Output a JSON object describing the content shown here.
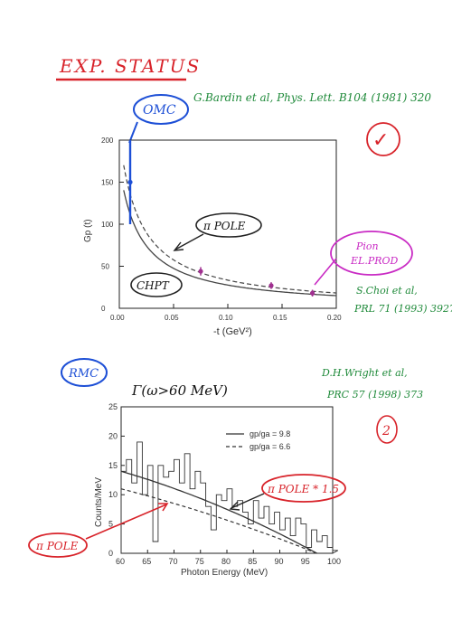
{
  "header": {
    "title": "EXP. STATUS",
    "ref1": "G.Bardin et al, Phys. Lett. B104 (1981) 320",
    "omc": "OMC",
    "check": "✓"
  },
  "top_chart_labels": {
    "ylabel": "Gp (t)",
    "xlabel": "-t (GeV²)",
    "pion_pole": "π POLE",
    "chpt": "CHPT",
    "pion_el_prod_1": "Pion",
    "pion_el_prod_2": "EL.PROD",
    "ref2_1": "S.Choi et al,",
    "ref2_2": "PRL 71 (1993) 3927"
  },
  "bottom_chart_labels": {
    "rmc": "RMC",
    "gamma_cut": "Γ(ω>60 MeV)",
    "ref3_1": "D.H.Wright et al,",
    "ref3_2": "PRC 57 (1998) 373",
    "note_num": "2",
    "ylabel": "Counts/MeV",
    "xlabel": "Photon Energy (MeV)",
    "legend1": "gp/ga = 9.8",
    "legend2": "gp/ga = 6.6",
    "pole_times": "π POLE * 1.5",
    "pole": "π POLE"
  },
  "chart_data": [
    {
      "type": "line",
      "xlim": [
        0,
        0.2
      ],
      "ylim": [
        0,
        200
      ],
      "xticks": [
        "0.00",
        "0.05",
        "0.10",
        "0.15",
        "0.20"
      ],
      "yticks": [
        "0",
        "50",
        "100",
        "150",
        "200"
      ],
      "points": [
        {
          "x": 0.01,
          "y": 150,
          "err": 50
        },
        {
          "x": 0.075,
          "y": 44,
          "err": 5
        },
        {
          "x": 0.14,
          "y": 27,
          "err": 4
        },
        {
          "x": 0.178,
          "y": 18,
          "err": 4
        }
      ]
    },
    {
      "type": "line",
      "xlim": [
        60,
        100
      ],
      "ylim": [
        0,
        25
      ],
      "xticks": [
        "60",
        "65",
        "70",
        "75",
        "80",
        "85",
        "90",
        "95",
        "100"
      ],
      "yticks": [
        "0",
        "5",
        "10",
        "15",
        "20",
        "25"
      ]
    }
  ],
  "colors": {
    "red": "#d8232a",
    "blue": "#1d4fd6",
    "green": "#1f8a3a",
    "magenta": "#c92bc4"
  }
}
